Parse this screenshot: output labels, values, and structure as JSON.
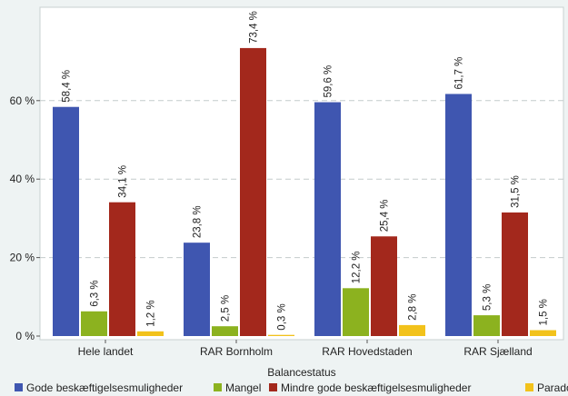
{
  "chart_data": {
    "type": "bar",
    "categories": [
      "Hele landet",
      "RAR Bornholm",
      "RAR Hovedstaden",
      "RAR Sjælland"
    ],
    "series": [
      {
        "name": "Gode beskæftigelsesmuligheder",
        "color": "#3f56b0",
        "values": [
          58.4,
          23.8,
          59.6,
          61.7
        ],
        "labels": [
          "58,4 %",
          "23,8 %",
          "59,6 %",
          "61,7 %"
        ]
      },
      {
        "name": "Mangel",
        "color": "#8cb21f",
        "values": [
          6.3,
          2.5,
          12.2,
          5.3
        ],
        "labels": [
          "6,3 %",
          "2,5 %",
          "12,2 %",
          "5,3 %"
        ]
      },
      {
        "name": "Mindre gode beskæftigelsesmuligheder",
        "color": "#a3281c",
        "values": [
          34.1,
          73.4,
          25.4,
          31.5
        ],
        "labels": [
          "34,1 %",
          "73,4 %",
          "25,4 %",
          "31,5 %"
        ]
      },
      {
        "name": "Paradoks",
        "color": "#f2c21b",
        "values": [
          1.2,
          0.3,
          2.8,
          1.5
        ],
        "labels": [
          "1,2 %",
          "0,3 %",
          "2,8 %",
          "1,5 %"
        ]
      }
    ],
    "yticks": [
      0,
      20,
      40,
      60
    ],
    "ytick_labels": [
      "0 %",
      "20 %",
      "40 %",
      "60 %"
    ],
    "ylim": [
      0,
      78
    ],
    "legend_title": "Balancestatus",
    "legend_position": "bottom",
    "grid": "horizontal-dashed"
  }
}
